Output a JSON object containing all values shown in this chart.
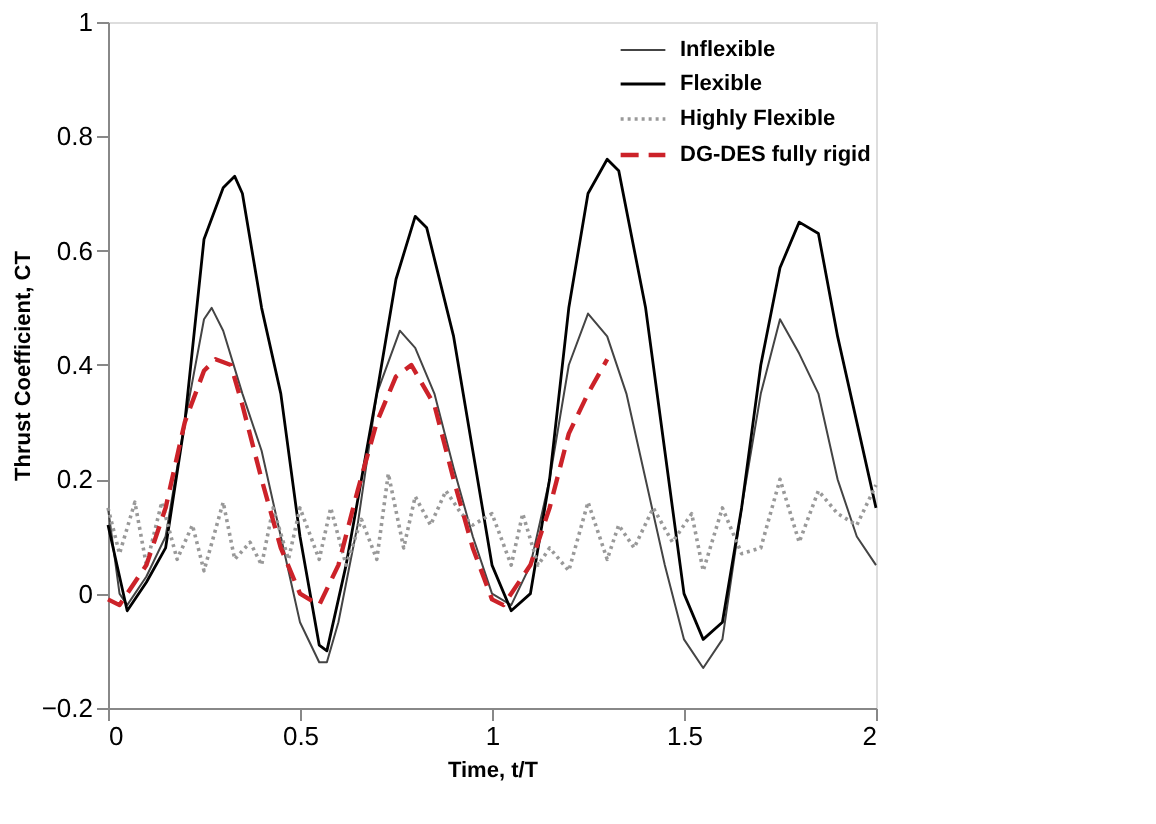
{
  "chart_data": {
    "type": "line",
    "xlabel": "Time, t/T",
    "ylabel": "Thrust Coefficient, CT",
    "xlim": [
      0,
      2
    ],
    "xticks": [
      0,
      0.5,
      1,
      1.5,
      2
    ],
    "ylim": [
      -0.2,
      1
    ],
    "yticks": [
      -0.2,
      0,
      0.2,
      0.4,
      0.6,
      0.8,
      1
    ],
    "grid": false,
    "legend": "top right",
    "marker": "none",
    "series": [
      {
        "name": "Inflexible",
        "color": "#444444",
        "line_style": "solid",
        "x": [
          0,
          0.03,
          0.05,
          0.1,
          0.15,
          0.2,
          0.25,
          0.27,
          0.3,
          0.35,
          0.4,
          0.45,
          0.5,
          0.55,
          0.57,
          0.6,
          0.65,
          0.7,
          0.76,
          0.8,
          0.85,
          0.9,
          0.95,
          1.0,
          1.05,
          1.1,
          1.15,
          1.2,
          1.25,
          1.3,
          1.35,
          1.4,
          1.45,
          1.5,
          1.55,
          1.6,
          1.65,
          1.7,
          1.75,
          1.8,
          1.85,
          1.9,
          1.95,
          2.0
        ],
        "values": [
          0.15,
          0.0,
          -0.02,
          0.03,
          0.1,
          0.3,
          0.48,
          0.5,
          0.46,
          0.35,
          0.25,
          0.1,
          -0.05,
          -0.12,
          -0.12,
          -0.05,
          0.12,
          0.35,
          0.46,
          0.43,
          0.35,
          0.22,
          0.1,
          0.0,
          -0.02,
          0.05,
          0.2,
          0.4,
          0.49,
          0.45,
          0.35,
          0.2,
          0.05,
          -0.08,
          -0.13,
          -0.08,
          0.15,
          0.35,
          0.48,
          0.42,
          0.35,
          0.2,
          0.1,
          0.05
        ]
      },
      {
        "name": "Flexible",
        "color": "#000000",
        "line_style": "solid",
        "x": [
          0,
          0.05,
          0.1,
          0.15,
          0.2,
          0.25,
          0.3,
          0.33,
          0.35,
          0.4,
          0.45,
          0.5,
          0.55,
          0.57,
          0.62,
          0.7,
          0.75,
          0.8,
          0.83,
          0.9,
          0.95,
          1.0,
          1.05,
          1.1,
          1.15,
          1.2,
          1.25,
          1.3,
          1.33,
          1.4,
          1.45,
          1.5,
          1.55,
          1.6,
          1.65,
          1.7,
          1.75,
          1.8,
          1.85,
          1.9,
          1.95,
          2.0
        ],
        "values": [
          0.12,
          -0.03,
          0.02,
          0.08,
          0.3,
          0.62,
          0.71,
          0.73,
          0.7,
          0.5,
          0.35,
          0.1,
          -0.09,
          -0.1,
          0.05,
          0.35,
          0.55,
          0.66,
          0.64,
          0.45,
          0.25,
          0.05,
          -0.03,
          0.0,
          0.2,
          0.5,
          0.7,
          0.76,
          0.74,
          0.5,
          0.25,
          0.0,
          -0.08,
          -0.05,
          0.15,
          0.4,
          0.57,
          0.65,
          0.63,
          0.45,
          0.3,
          0.15
        ]
      },
      {
        "name": "Highly Flexible",
        "color": "#999999",
        "line_style": "dotted",
        "x": [
          0,
          0.03,
          0.07,
          0.1,
          0.14,
          0.18,
          0.22,
          0.25,
          0.3,
          0.33,
          0.37,
          0.4,
          0.43,
          0.47,
          0.5,
          0.55,
          0.58,
          0.62,
          0.66,
          0.7,
          0.73,
          0.77,
          0.8,
          0.84,
          0.88,
          0.92,
          0.95,
          1.0,
          1.05,
          1.08,
          1.12,
          1.15,
          1.2,
          1.25,
          1.3,
          1.33,
          1.37,
          1.42,
          1.47,
          1.52,
          1.55,
          1.6,
          1.65,
          1.7,
          1.75,
          1.8,
          1.85,
          1.9,
          1.95,
          2.0
        ],
        "values": [
          0.15,
          0.07,
          0.16,
          0.05,
          0.16,
          0.06,
          0.12,
          0.04,
          0.16,
          0.06,
          0.09,
          0.05,
          0.15,
          0.06,
          0.15,
          0.06,
          0.15,
          0.05,
          0.13,
          0.06,
          0.21,
          0.08,
          0.17,
          0.12,
          0.18,
          0.14,
          0.12,
          0.14,
          0.05,
          0.14,
          0.05,
          0.08,
          0.04,
          0.16,
          0.06,
          0.12,
          0.08,
          0.15,
          0.09,
          0.14,
          0.04,
          0.15,
          0.07,
          0.08,
          0.2,
          0.09,
          0.18,
          0.14,
          0.12,
          0.19
        ]
      },
      {
        "name": "DG-DES fully rigid",
        "color": "#cc2229",
        "line_style": "dashed",
        "x": [
          0,
          0.03,
          0.1,
          0.15,
          0.2,
          0.25,
          0.28,
          0.32,
          0.35,
          0.4,
          0.45,
          0.5,
          0.55,
          0.6,
          0.65,
          0.7,
          0.75,
          0.79,
          0.85,
          0.9,
          0.95,
          1.0,
          1.03,
          1.1,
          1.15,
          1.2,
          1.25,
          1.3
        ],
        "values": [
          -0.01,
          -0.02,
          0.05,
          0.15,
          0.3,
          0.39,
          0.41,
          0.4,
          0.33,
          0.2,
          0.08,
          0.0,
          -0.02,
          0.05,
          0.18,
          0.3,
          0.38,
          0.4,
          0.33,
          0.2,
          0.08,
          -0.01,
          -0.02,
          0.05,
          0.15,
          0.28,
          0.35,
          0.41
        ]
      }
    ]
  }
}
